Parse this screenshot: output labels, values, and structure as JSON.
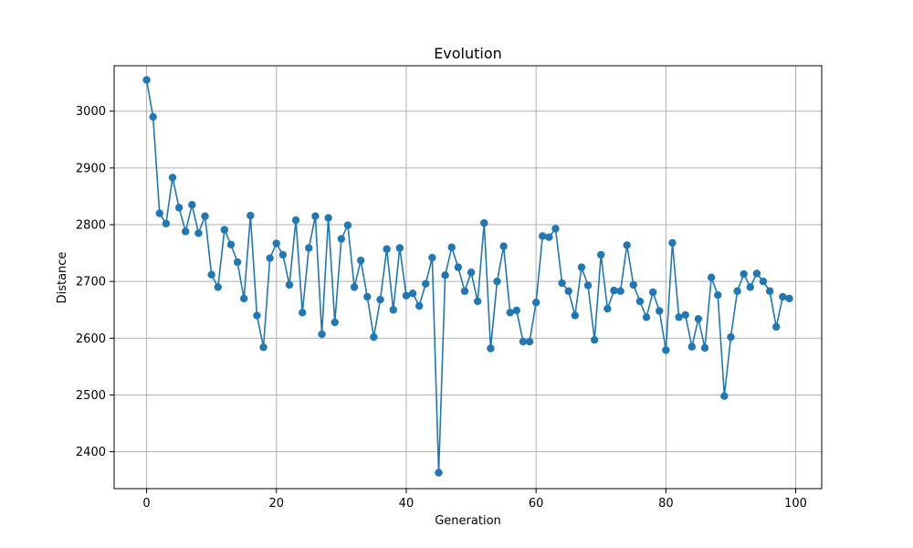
{
  "chart_data": {
    "type": "line",
    "title": "Evolution",
    "xlabel": "Generation",
    "ylabel": "Distance",
    "xlim": [
      -5,
      104
    ],
    "ylim": [
      2335,
      3080
    ],
    "xticks": [
      0,
      20,
      40,
      60,
      80,
      100
    ],
    "yticks": [
      2400,
      2500,
      2600,
      2700,
      2800,
      2900,
      3000
    ],
    "grid": true,
    "color": "#1f77b4",
    "marker": "circle",
    "series": [
      {
        "x": [
          0,
          1,
          2,
          3,
          4,
          5,
          6,
          7,
          8,
          9,
          10,
          11,
          12,
          13,
          14,
          15,
          16,
          17,
          18,
          19,
          20,
          21,
          22,
          23,
          24,
          25,
          26,
          27,
          28,
          29,
          30,
          31,
          32,
          33,
          34,
          35,
          36,
          37,
          38,
          39,
          40,
          41,
          42,
          43,
          44,
          45,
          46,
          47,
          48,
          49,
          50,
          51,
          52,
          53,
          54,
          55,
          56,
          57,
          58,
          59,
          60,
          61,
          62,
          63,
          64,
          65,
          66,
          67,
          68,
          69,
          70,
          71,
          72,
          73,
          74,
          75,
          76,
          77,
          78,
          79,
          80,
          81,
          82,
          83,
          84,
          85,
          86,
          87,
          88,
          89,
          90,
          91,
          92,
          93,
          94,
          95,
          96,
          97,
          98,
          99
        ],
        "values": [
          3055,
          2990,
          2820,
          2802,
          2883,
          2830,
          2788,
          2835,
          2785,
          2815,
          2712,
          2690,
          2791,
          2765,
          2734,
          2670,
          2816,
          2640,
          2584,
          2741,
          2767,
          2747,
          2694,
          2808,
          2645,
          2759,
          2815,
          2607,
          2812,
          2628,
          2775,
          2799,
          2690,
          2737,
          2673,
          2602,
          2668,
          2757,
          2650,
          2759,
          2675,
          2679,
          2657,
          2696,
          2742,
          2363,
          2711,
          2760,
          2725,
          2683,
          2716,
          2665,
          2803,
          2582,
          2700,
          2762,
          2645,
          2649,
          2594,
          2594,
          2663,
          2780,
          2778,
          2793,
          2697,
          2683,
          2640,
          2725,
          2693,
          2597,
          2747,
          2652,
          2684,
          2683,
          2764,
          2694,
          2665,
          2637,
          2681,
          2648,
          2579,
          2768,
          2637,
          2641,
          2585,
          2634,
          2583,
          2707,
          2676,
          2498,
          2602,
          2683,
          2713,
          2690,
          2714,
          2700,
          2683,
          2620,
          2673,
          2670
        ]
      }
    ]
  }
}
